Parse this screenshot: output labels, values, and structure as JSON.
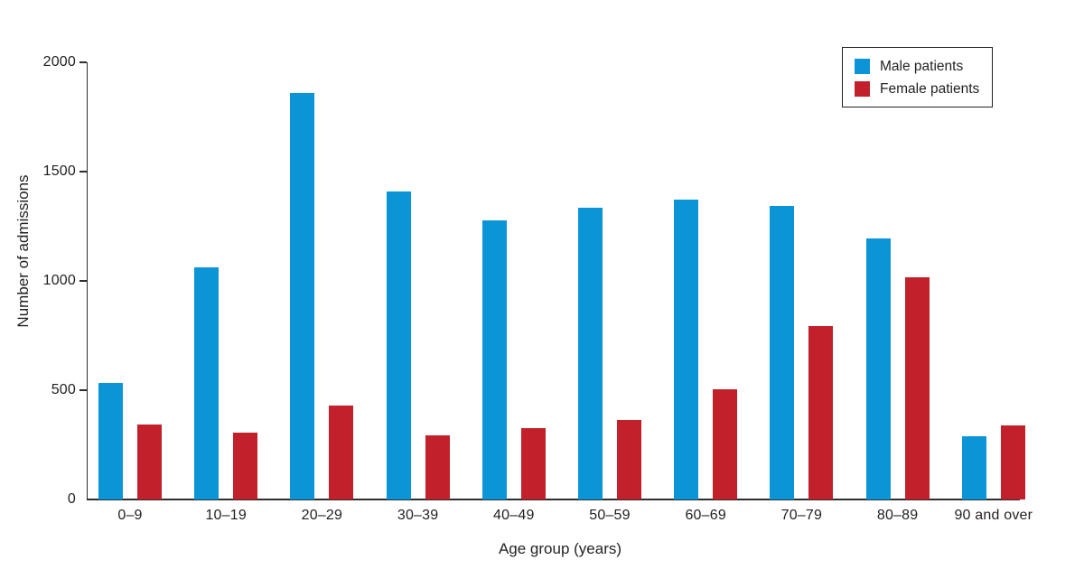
{
  "chart_data": {
    "type": "bar",
    "title": "",
    "categories": [
      "0–9",
      "10–19",
      "20–29",
      "30–39",
      "40–49",
      "50–59",
      "60–69",
      "70–79",
      "80–89",
      "90 and over"
    ],
    "series": [
      {
        "name": "Male patients",
        "color": "#0c95d6",
        "values": [
          535,
          1060,
          1860,
          1410,
          1275,
          1335,
          1370,
          1345,
          1195,
          290
        ]
      },
      {
        "name": "Female patients",
        "color": "#c2202b",
        "values": [
          345,
          305,
          430,
          295,
          325,
          365,
          505,
          795,
          1015,
          340
        ]
      }
    ],
    "xlabel": "Age group (years)",
    "ylabel": "Number of admissions",
    "ylim": [
      0,
      2000
    ],
    "yticks": [
      0,
      500,
      1000,
      1500,
      2000
    ],
    "grid": false,
    "legend_position": "top-right",
    "axis_color": "#2e2e2e",
    "text_color": "#231f20",
    "background": "#ffffff"
  }
}
